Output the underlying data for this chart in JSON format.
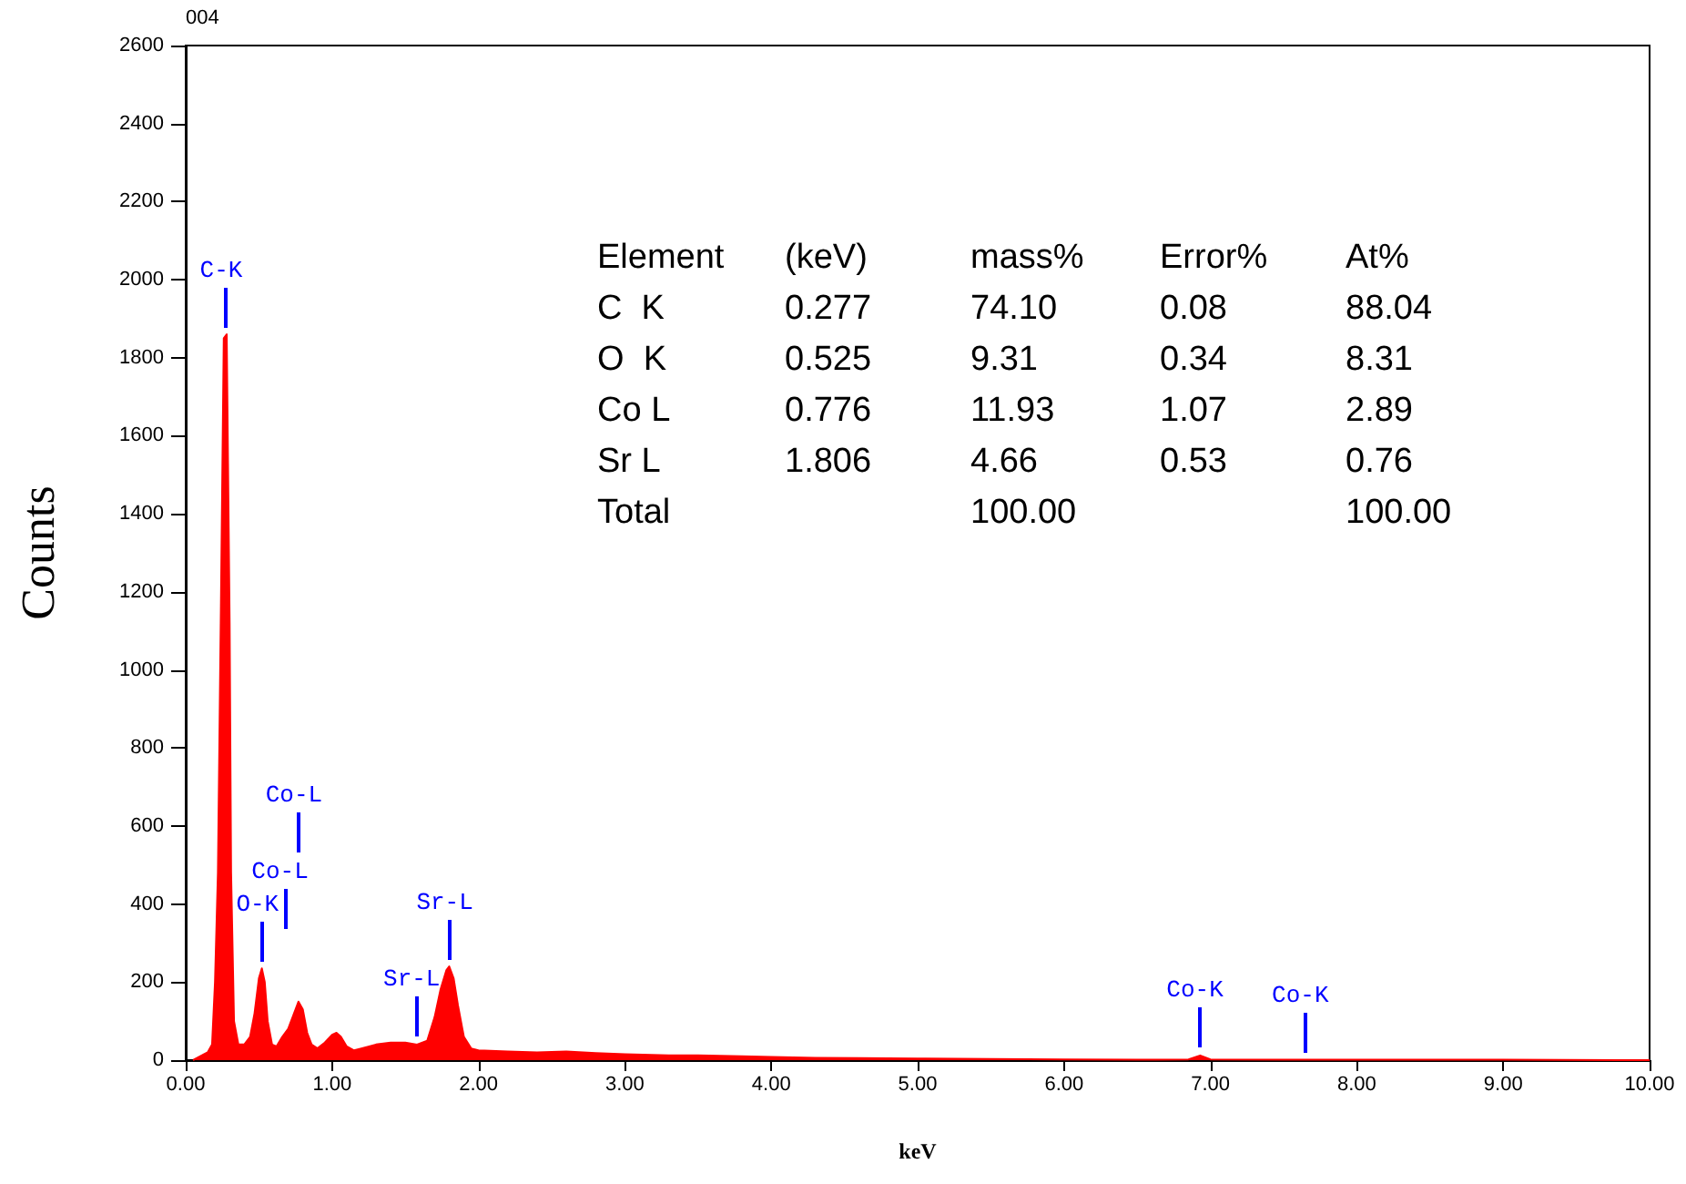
{
  "chart_data": {
    "type": "area",
    "xlabel": "keV",
    "ylabel": "Counts",
    "x": [
      0.05,
      0.1,
      0.15,
      0.18,
      0.2,
      0.22,
      0.24,
      0.26,
      0.28,
      0.3,
      0.31,
      0.33,
      0.36,
      0.4,
      0.44,
      0.47,
      0.5,
      0.52,
      0.54,
      0.56,
      0.59,
      0.62,
      0.66,
      0.7,
      0.74,
      0.77,
      0.8,
      0.83,
      0.86,
      0.9,
      0.95,
      1.0,
      1.03,
      1.06,
      1.1,
      1.15,
      1.2,
      1.3,
      1.4,
      1.5,
      1.58,
      1.65,
      1.7,
      1.74,
      1.78,
      1.8,
      1.83,
      1.86,
      1.9,
      1.95,
      2.0,
      2.2,
      2.4,
      2.6,
      2.8,
      3.0,
      3.3,
      3.5,
      3.8,
      4.0,
      4.3,
      4.6,
      5.0,
      5.5,
      6.0,
      6.5,
      6.85,
      6.93,
      7.0,
      7.5,
      8.0,
      9.0,
      10.0
    ],
    "series": [
      {
        "color": "#ff0000",
        "values": [
          0,
          10,
          20,
          40,
          200,
          480,
          1150,
          1850,
          1860,
          1120,
          480,
          100,
          40,
          40,
          60,
          120,
          210,
          235,
          200,
          100,
          40,
          35,
          60,
          80,
          120,
          150,
          130,
          70,
          40,
          30,
          45,
          65,
          70,
          60,
          35,
          25,
          30,
          40,
          45,
          45,
          40,
          50,
          110,
          180,
          230,
          240,
          210,
          140,
          60,
          30,
          25,
          22,
          20,
          22,
          18,
          15,
          12,
          12,
          10,
          8,
          6,
          5,
          4,
          3,
          2,
          1,
          2,
          12,
          2,
          1,
          1,
          1,
          0
        ]
      }
    ],
    "xlim": [
      0,
      10
    ],
    "xticks": [
      {
        "value": 0,
        "label": "0.00"
      },
      {
        "value": 1,
        "label": "1.00"
      },
      {
        "value": 2,
        "label": "2.00"
      },
      {
        "value": 3,
        "label": "3.00"
      },
      {
        "value": 4,
        "label": "4.00"
      },
      {
        "value": 5,
        "label": "5.00"
      },
      {
        "value": 6,
        "label": "6.00"
      },
      {
        "value": 7,
        "label": "7.00"
      },
      {
        "value": 8,
        "label": "8.00"
      },
      {
        "value": 9,
        "label": "9.00"
      },
      {
        "value": 10,
        "label": "10.00"
      }
    ],
    "ylim": [
      0,
      2600
    ],
    "yticks": [
      0,
      200,
      400,
      600,
      800,
      1000,
      1200,
      1400,
      1600,
      1800,
      2000,
      2200,
      2400,
      2600
    ],
    "grid": false,
    "marker": "none",
    "ref_lines": [
      {
        "axis": "x",
        "value": 0.277,
        "label": "C-K",
        "color": "#0000ff"
      },
      {
        "axis": "x",
        "value": 0.525,
        "label": "O-K",
        "color": "#0000ff"
      },
      {
        "axis": "x",
        "value": 0.68,
        "label": "Co-L",
        "color": "#0000ff"
      },
      {
        "axis": "x",
        "value": 0.776,
        "label": "Co-L",
        "color": "#0000ff"
      },
      {
        "axis": "x",
        "value": 1.58,
        "label": "Sr-L",
        "color": "#0000ff"
      },
      {
        "axis": "x",
        "value": 1.806,
        "label": "Sr-L",
        "color": "#0000ff"
      },
      {
        "axis": "x",
        "value": 6.93,
        "label": "Co-K",
        "color": "#0000ff"
      },
      {
        "axis": "x",
        "value": 7.65,
        "label": "Co-K",
        "color": "#0000ff"
      }
    ],
    "annotations": [
      "004",
      "Element\t(keV)\tmass%\tError%\tAt%",
      "C  K\t0.277\t74.10\t0.08\t88.04",
      "O  K\t0.525\t9.31\t0.34\t8.31",
      "Co L\t0.776\t11.93\t1.07\t2.89",
      "Sr L\t1.806\t4.66\t0.53\t0.76",
      "Total\t\t100.00\t\t100.00"
    ]
  }
}
